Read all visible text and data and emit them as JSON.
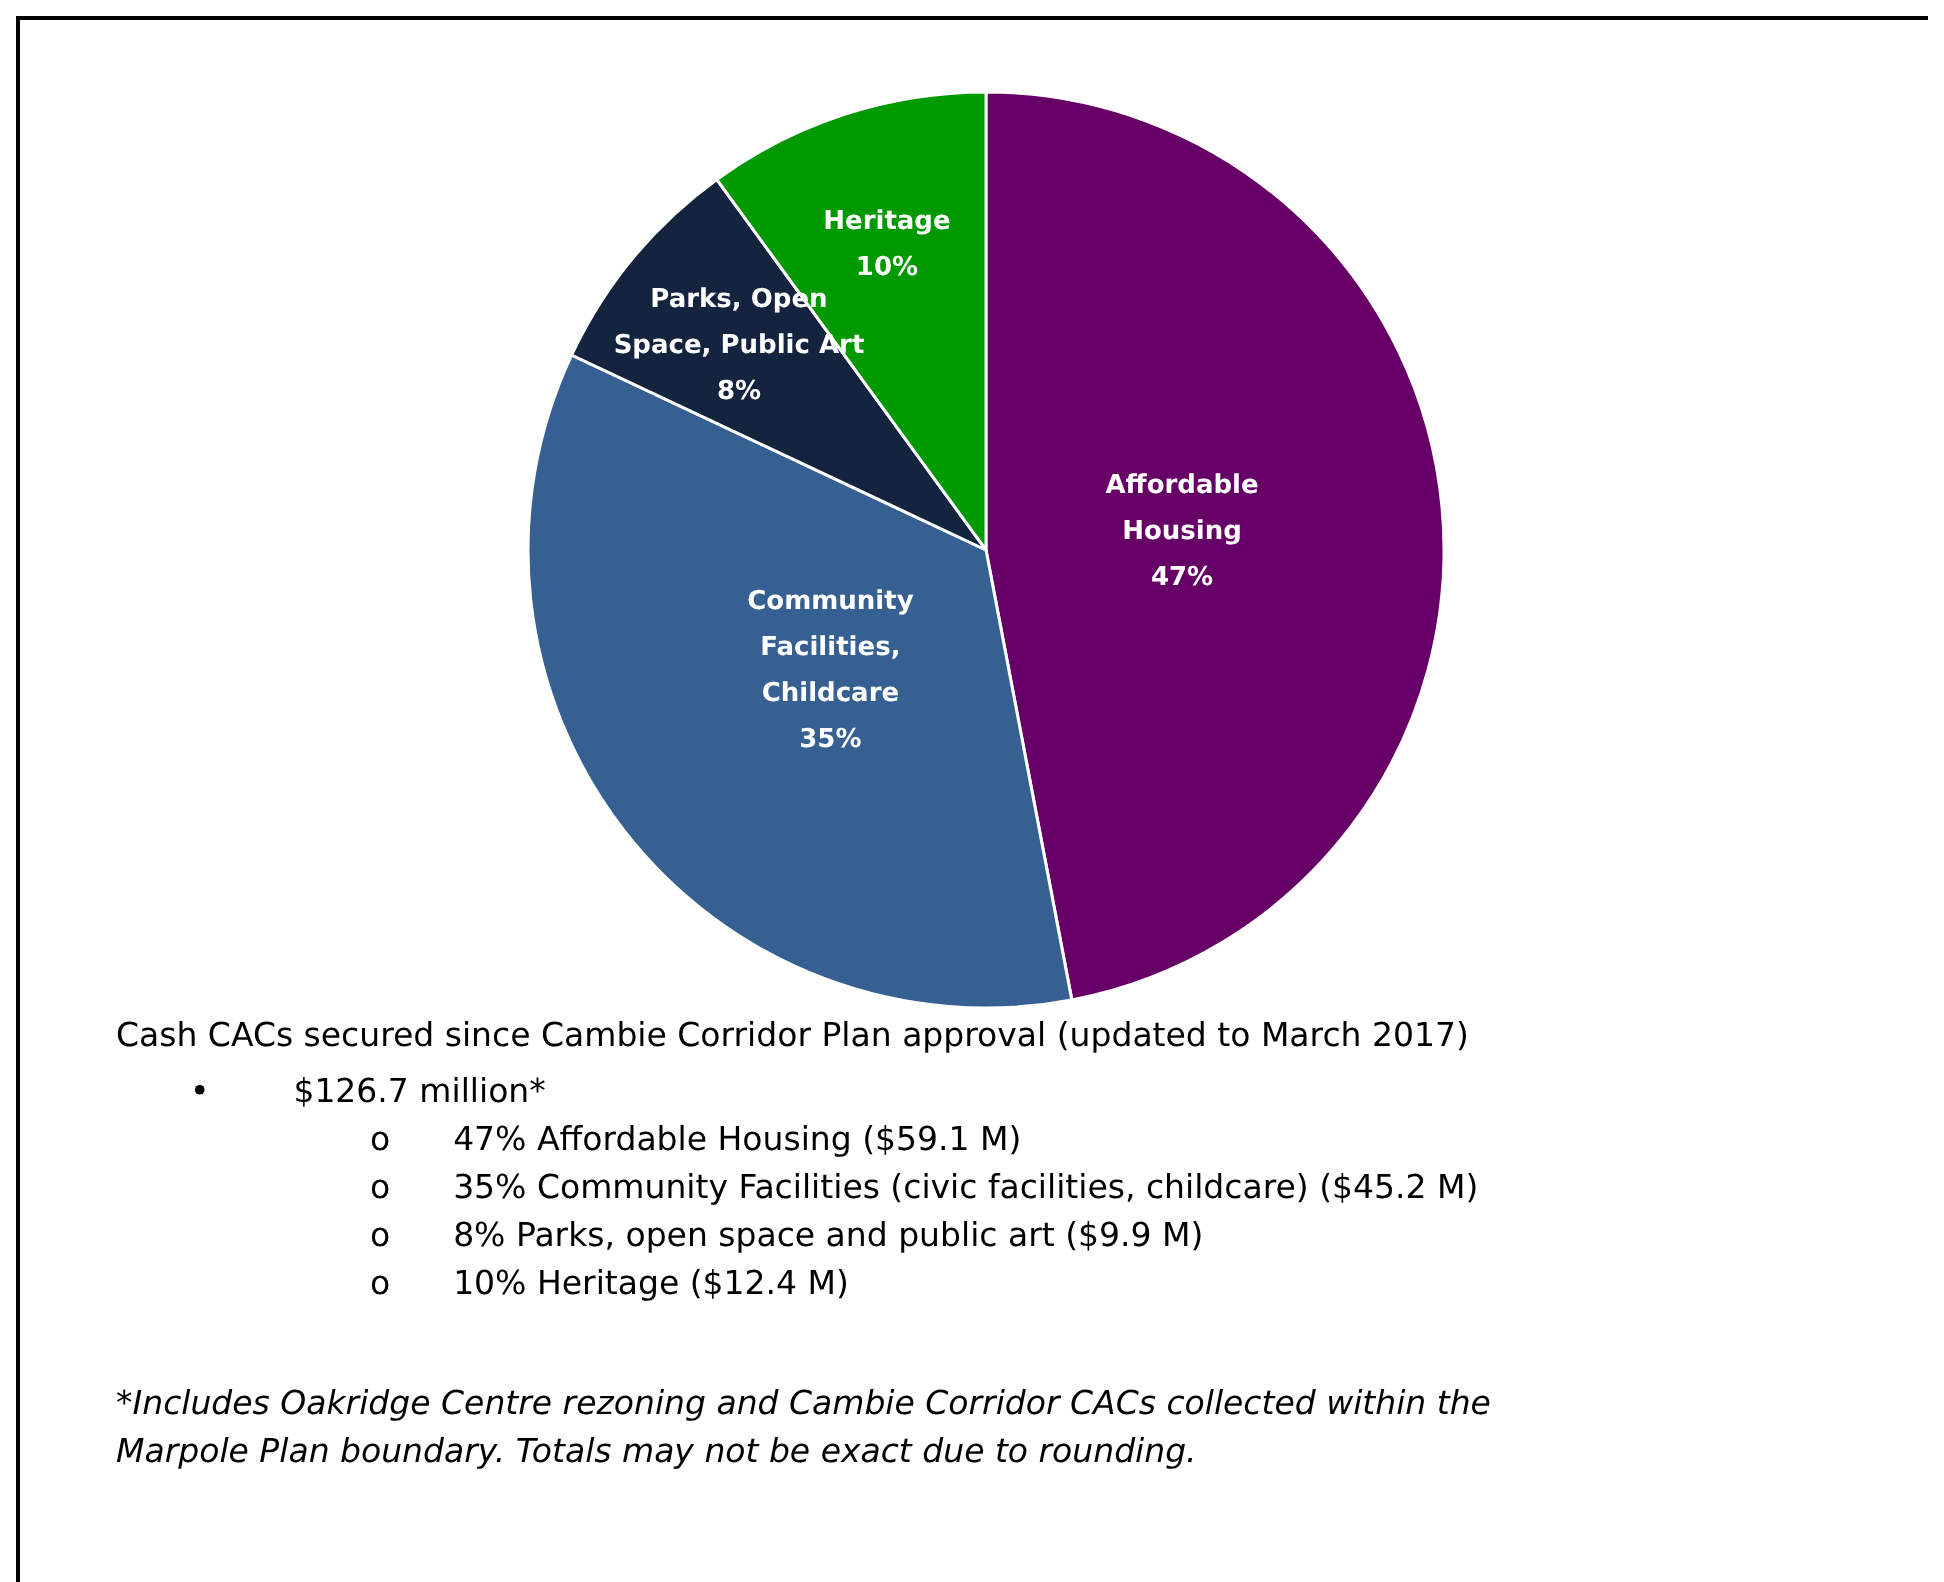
{
  "chart_data": {
    "type": "pie",
    "categories": [
      "Affordable\nHousing",
      "Community\nFacilities,\nChildcare",
      "Parks, Open\nSpace, Public Art",
      "Heritage"
    ],
    "values": [
      47,
      35,
      8,
      10
    ],
    "colors": [
      "#660066",
      "#366092",
      "#14243f",
      "#009900"
    ],
    "value_labels": [
      "47%",
      "35%",
      "8%",
      "10%"
    ],
    "legend": false,
    "annotations": [
      "Cash CACs secured since Cambie Corridor Plan approval (updated to March 2017)",
      "•        $126.7 million*",
      "o      47% Affordable Housing ($59.1 M)",
      "o      35% Community Facilities (civic facilities, childcare) ($45.2 M)",
      "o      8% Parks, open space and public art ($9.9 M)",
      "o      10% Heritage ($12.4 M)",
      "*Includes Oakridge Centre rezoning and Cambie Corridor CACs collected within the",
      "Marpole Plan boundary. Totals may not be exact due to rounding."
    ]
  }
}
